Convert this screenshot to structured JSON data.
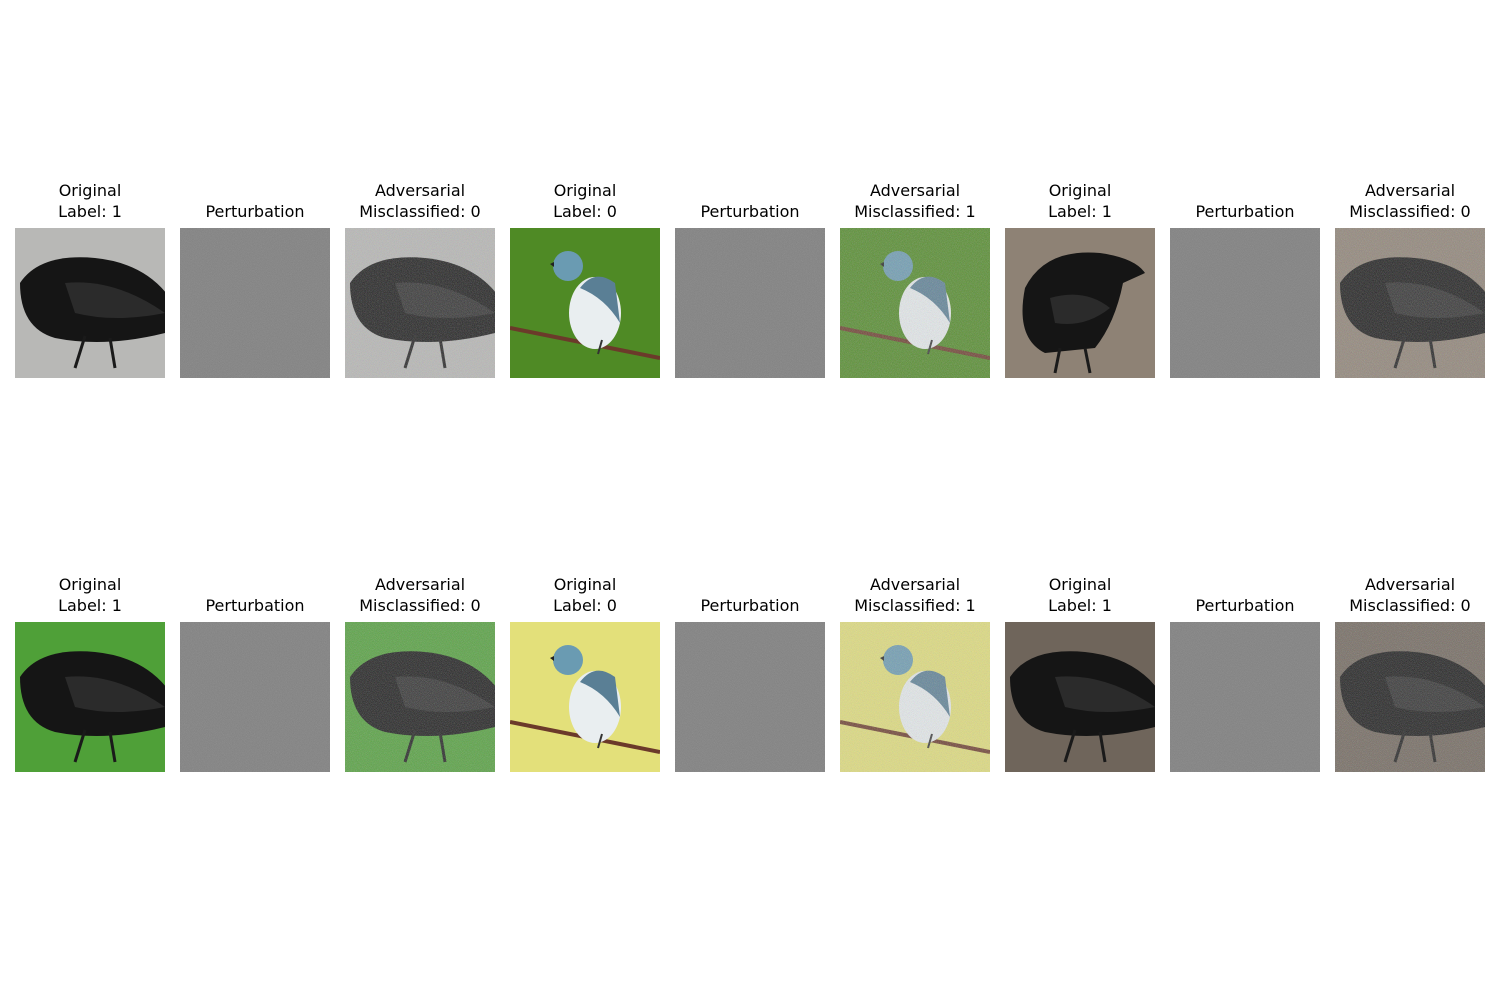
{
  "figure": {
    "rows": [
      {
        "panels": [
          {
            "kind": "original",
            "title": [
              "Original",
              "Label: 1"
            ],
            "subject": "crow",
            "background": "#b8b8b6"
          },
          {
            "kind": "perturbation",
            "title": [
              "Perturbation"
            ],
            "subject": "noise",
            "background": "#7d7d7d"
          },
          {
            "kind": "adversarial",
            "title": [
              "Adversarial",
              "Misclassified: 0"
            ],
            "subject": "crow",
            "background": "#b8b8b6"
          },
          {
            "kind": "original",
            "title": [
              "Original",
              "Label: 0"
            ],
            "subject": "warbler",
            "background": "#4f8a25"
          },
          {
            "kind": "perturbation",
            "title": [
              "Perturbation"
            ],
            "subject": "noise",
            "background": "#7d7d7d"
          },
          {
            "kind": "adversarial",
            "title": [
              "Adversarial",
              "Misclassified: 1"
            ],
            "subject": "warbler",
            "background": "#4f8a25"
          },
          {
            "kind": "original",
            "title": [
              "Original",
              "Label: 1"
            ],
            "subject": "crow",
            "background": "#8e8275"
          },
          {
            "kind": "perturbation",
            "title": [
              "Perturbation"
            ],
            "subject": "noise",
            "background": "#7d7d7d"
          },
          {
            "kind": "adversarial",
            "title": [
              "Adversarial",
              "Misclassified: 0"
            ],
            "subject": "crow",
            "background": "#8e8275"
          }
        ]
      },
      {
        "panels": [
          {
            "kind": "original",
            "title": [
              "Original",
              "Label: 1"
            ],
            "subject": "crow",
            "background": "#4fa038"
          },
          {
            "kind": "perturbation",
            "title": [
              "Perturbation"
            ],
            "subject": "noise",
            "background": "#7d7d7d"
          },
          {
            "kind": "adversarial",
            "title": [
              "Adversarial",
              "Misclassified: 0"
            ],
            "subject": "crow",
            "background": "#4fa038"
          },
          {
            "kind": "original",
            "title": [
              "Original",
              "Label: 0"
            ],
            "subject": "warbler",
            "background": "#e3e07a"
          },
          {
            "kind": "perturbation",
            "title": [
              "Perturbation"
            ],
            "subject": "noise",
            "background": "#7d7d7d"
          },
          {
            "kind": "adversarial",
            "title": [
              "Adversarial",
              "Misclassified: 1"
            ],
            "subject": "warbler",
            "background": "#e3e07a"
          },
          {
            "kind": "original",
            "title": [
              "Original",
              "Label: 1"
            ],
            "subject": "crow",
            "background": "#6f655b"
          },
          {
            "kind": "perturbation",
            "title": [
              "Perturbation"
            ],
            "subject": "noise",
            "background": "#7d7d7d"
          },
          {
            "kind": "adversarial",
            "title": [
              "Adversarial",
              "Misclassified: 0"
            ],
            "subject": "crow",
            "background": "#6f655b"
          }
        ]
      }
    ]
  }
}
